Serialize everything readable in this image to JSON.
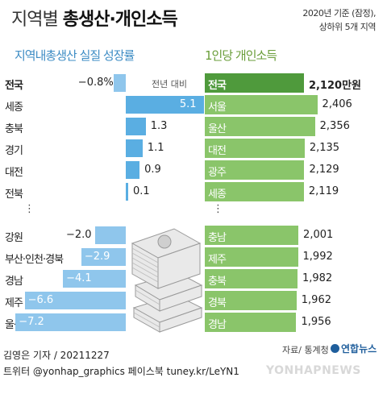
{
  "title": {
    "light": "지역별 ",
    "bold": "총생산·개인소득"
  },
  "note": {
    "line1": "2020년 기준 (잠정),",
    "line2": "상하위 5개 지역"
  },
  "left_section": {
    "title": "지역내총생산 실질 성장률",
    "legend": "전년 대비",
    "ellipsis": "⋮"
  },
  "right_section": {
    "title": "1인당 개인소득",
    "ellipsis": "⋮"
  },
  "source": "자료/ 통계청",
  "brand": "연합뉴스",
  "byline": "김영은 기자 / 20211227",
  "credit": "트위터 @yonhap_graphics  페이스북 tuney.kr/LeYN1",
  "watermark": "YONHAPNEWS",
  "colors": {
    "growth_positive": "#5aaee2",
    "growth_negative": "#8fc6ec",
    "income_bar": "#8ac56a",
    "income_national": "#4f9a3c"
  },
  "chart_data": [
    {
      "type": "bar",
      "title": "지역내총생산 실질 성장률",
      "ylabel": "전년 대비",
      "categories": [
        "전국",
        "세종",
        "충북",
        "경기",
        "대전",
        "전북",
        "강원",
        "부산·인천·경북",
        "경남",
        "제주",
        "울산"
      ],
      "value_labels": [
        "−0.8%",
        "5.1",
        "1.3",
        "1.1",
        "0.9",
        "0.1",
        "−2.0",
        "−2.9",
        "−4.1",
        "−6.6",
        "−7.2"
      ],
      "values": [
        -0.8,
        5.1,
        1.3,
        1.1,
        0.9,
        0.1,
        -2.0,
        -2.9,
        -4.1,
        -6.6,
        -7.2
      ]
    },
    {
      "type": "bar",
      "title": "1인당 개인소득",
      "categories": [
        "전국",
        "서울",
        "울산",
        "대전",
        "광주",
        "세종",
        "충남",
        "제주",
        "충북",
        "경북",
        "경남"
      ],
      "value_labels": [
        "2,120만원",
        "2,406",
        "2,356",
        "2,135",
        "2,129",
        "2,119",
        "2,001",
        "1,992",
        "1,982",
        "1,962",
        "1,956"
      ],
      "values": [
        2120,
        2406,
        2356,
        2135,
        2129,
        2119,
        2001,
        1992,
        1982,
        1962,
        1956
      ],
      "unit": "만원"
    }
  ]
}
